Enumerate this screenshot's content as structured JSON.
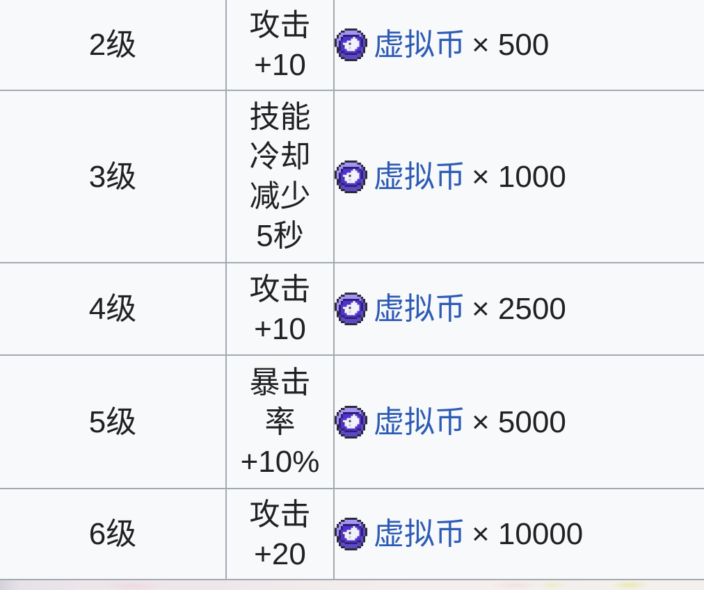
{
  "page": {
    "background_color": "#f8f9fa",
    "border_color": "#a2a9b1",
    "text_color": "#202122",
    "link_color": "#2d5bb5"
  },
  "icons": {
    "currency": "coin-icon",
    "coin_main_color": "#5132cf",
    "coin_ring_color": "#a395f4"
  },
  "table": {
    "rows": [
      {
        "level": "2级",
        "effect": "攻击\n+10",
        "currency": "虚拟币",
        "amount": "× 500"
      },
      {
        "level": "3级",
        "effect": "技能\n冷却\n减少\n5秒",
        "currency": "虚拟币",
        "amount": "× 1000"
      },
      {
        "level": "4级",
        "effect": "攻击\n+10",
        "currency": "虚拟币",
        "amount": "× 2500"
      },
      {
        "level": "5级",
        "effect": "暴击\n率\n+10%",
        "currency": "虚拟币",
        "amount": "× 5000"
      },
      {
        "level": "6级",
        "effect": "攻击\n+20",
        "currency": "虚拟币",
        "amount": "× 10000"
      }
    ]
  }
}
